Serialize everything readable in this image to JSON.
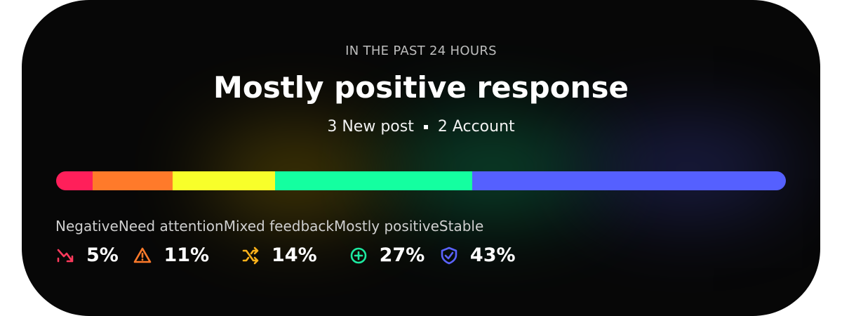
{
  "header": {
    "eyebrow": "IN THE PAST 24 HOURS",
    "title": "Mostly positive response",
    "meta": [
      "3 New post",
      "2 Account"
    ]
  },
  "segments": [
    {
      "label": "Negative",
      "value": 5,
      "value_label": "5%",
      "color": "#ff1f5a",
      "icon_color": "#ff3a5c"
    },
    {
      "label": "Need attention",
      "value": 11,
      "value_label": "11%",
      "color": "#ff7a2a",
      "icon_color": "#ff7a2a"
    },
    {
      "label": "Mixed feedback",
      "value": 14,
      "value_label": "14%",
      "color": "#f8ff2a",
      "icon_color": "#ffb21a"
    },
    {
      "label": "Mostly positive",
      "value": 27,
      "value_label": "27%",
      "color": "#14ffa0",
      "icon_color": "#1de9a0"
    },
    {
      "label": "Stable",
      "value": 43,
      "value_label": "43%",
      "color": "#5560ff",
      "icon_color": "#5b63ff"
    }
  ]
}
